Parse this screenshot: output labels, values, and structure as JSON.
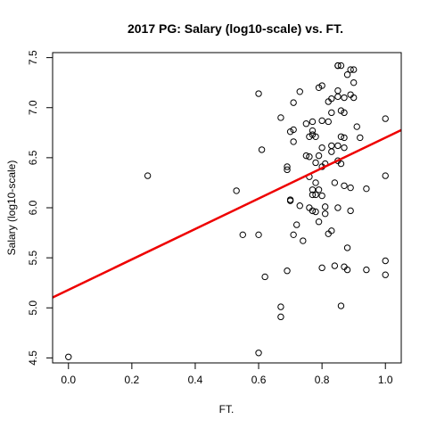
{
  "chart_data": {
    "type": "scatter",
    "title": "2017 PG: Salary (log10-scale) vs. FT.",
    "xlabel": "FT.",
    "ylabel": "Salary (log10-scale)",
    "xlim": [
      -0.05,
      1.05
    ],
    "ylim": [
      4.45,
      7.55
    ],
    "x_ticks": [
      0.0,
      0.2,
      0.4,
      0.6,
      0.8,
      1.0
    ],
    "x_tick_labels": [
      "0.0",
      "0.2",
      "0.4",
      "0.6",
      "0.8",
      "1.0"
    ],
    "y_ticks": [
      4.5,
      5.0,
      5.5,
      6.0,
      6.5,
      7.0,
      7.5
    ],
    "y_tick_labels": [
      "4.5",
      "5.0",
      "5.5",
      "6.0",
      "6.5",
      "7.0",
      "7.5"
    ],
    "grid": false,
    "fit_line": {
      "intercept": 5.18,
      "slope": 1.52,
      "color": "#ee0000"
    },
    "points": [
      [
        0.0,
        4.51
      ],
      [
        0.25,
        6.32
      ],
      [
        0.53,
        6.17
      ],
      [
        0.55,
        5.73
      ],
      [
        0.6,
        7.14
      ],
      [
        0.6,
        5.73
      ],
      [
        0.6,
        4.55
      ],
      [
        0.61,
        6.58
      ],
      [
        0.62,
        5.31
      ],
      [
        0.67,
        6.9
      ],
      [
        0.67,
        5.01
      ],
      [
        0.67,
        4.91
      ],
      [
        0.69,
        6.38
      ],
      [
        0.69,
        6.41
      ],
      [
        0.69,
        5.37
      ],
      [
        0.7,
        6.76
      ],
      [
        0.7,
        6.07
      ],
      [
        0.7,
        6.08
      ],
      [
        0.71,
        7.05
      ],
      [
        0.71,
        6.78
      ],
      [
        0.71,
        6.66
      ],
      [
        0.71,
        5.73
      ],
      [
        0.72,
        5.83
      ],
      [
        0.73,
        7.16
      ],
      [
        0.73,
        6.02
      ],
      [
        0.74,
        5.67
      ],
      [
        0.75,
        6.84
      ],
      [
        0.75,
        6.52
      ],
      [
        0.76,
        6.51
      ],
      [
        0.76,
        6.71
      ],
      [
        0.76,
        6.31
      ],
      [
        0.76,
        6.0
      ],
      [
        0.77,
        6.77
      ],
      [
        0.77,
        6.73
      ],
      [
        0.77,
        6.86
      ],
      [
        0.77,
        6.18
      ],
      [
        0.77,
        6.13
      ],
      [
        0.77,
        5.97
      ],
      [
        0.78,
        6.71
      ],
      [
        0.78,
        6.45
      ],
      [
        0.78,
        6.25
      ],
      [
        0.78,
        6.13
      ],
      [
        0.78,
        5.96
      ],
      [
        0.79,
        7.2
      ],
      [
        0.79,
        6.52
      ],
      [
        0.79,
        6.18
      ],
      [
        0.79,
        5.86
      ],
      [
        0.8,
        7.22
      ],
      [
        0.8,
        6.87
      ],
      [
        0.8,
        6.6
      ],
      [
        0.8,
        6.41
      ],
      [
        0.8,
        6.12
      ],
      [
        0.8,
        5.4
      ],
      [
        0.81,
        6.44
      ],
      [
        0.81,
        6.01
      ],
      [
        0.81,
        5.94
      ],
      [
        0.82,
        7.06
      ],
      [
        0.82,
        6.86
      ],
      [
        0.82,
        5.74
      ],
      [
        0.83,
        6.95
      ],
      [
        0.83,
        7.09
      ],
      [
        0.83,
        6.62
      ],
      [
        0.83,
        6.56
      ],
      [
        0.83,
        5.77
      ],
      [
        0.84,
        6.25
      ],
      [
        0.84,
        5.42
      ],
      [
        0.85,
        7.42
      ],
      [
        0.85,
        7.42
      ],
      [
        0.85,
        7.17
      ],
      [
        0.85,
        7.11
      ],
      [
        0.85,
        6.62
      ],
      [
        0.85,
        6.47
      ],
      [
        0.85,
        6.0
      ],
      [
        0.86,
        7.42
      ],
      [
        0.86,
        6.97
      ],
      [
        0.86,
        6.71
      ],
      [
        0.86,
        6.44
      ],
      [
        0.86,
        5.02
      ],
      [
        0.87,
        7.1
      ],
      [
        0.87,
        6.7
      ],
      [
        0.87,
        6.6
      ],
      [
        0.87,
        6.22
      ],
      [
        0.87,
        6.95
      ],
      [
        0.87,
        5.41
      ],
      [
        0.88,
        7.33
      ],
      [
        0.88,
        5.6
      ],
      [
        0.88,
        5.38
      ],
      [
        0.89,
        7.38
      ],
      [
        0.89,
        7.13
      ],
      [
        0.89,
        6.2
      ],
      [
        0.89,
        5.97
      ],
      [
        0.9,
        7.38
      ],
      [
        0.9,
        7.1
      ],
      [
        0.9,
        7.25
      ],
      [
        0.91,
        6.81
      ],
      [
        0.92,
        6.7
      ],
      [
        0.94,
        6.19
      ],
      [
        0.94,
        5.38
      ],
      [
        1.0,
        6.89
      ],
      [
        1.0,
        6.32
      ],
      [
        1.0,
        5.47
      ],
      [
        1.0,
        5.33
      ]
    ]
  }
}
